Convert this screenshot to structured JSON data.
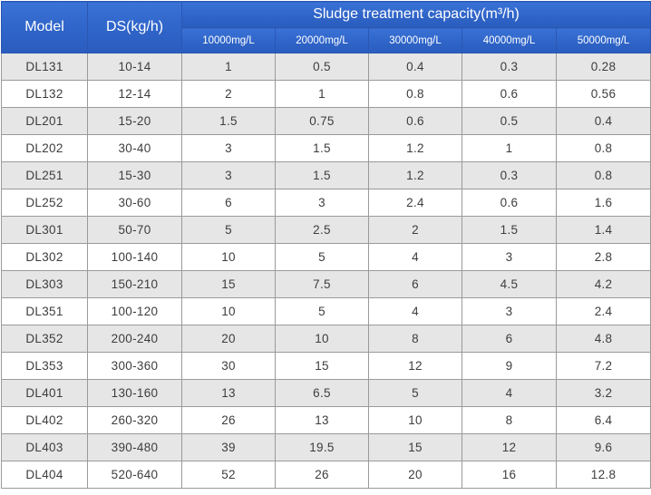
{
  "header": {
    "model": "Model",
    "ds": "DS(kg/h)",
    "capacity": "Sludge treatment capacity(m³/h)",
    "concentrations": [
      "10000mg/L",
      "20000mg/L",
      "30000mg/L",
      "40000mg/L",
      "50000mg/L"
    ]
  },
  "rows": [
    [
      "DL131",
      "10-14",
      "1",
      "0.5",
      "0.4",
      "0.3",
      "0.28"
    ],
    [
      "DL132",
      "12-14",
      "2",
      "1",
      "0.8",
      "0.6",
      "0.56"
    ],
    [
      "DL201",
      "15-20",
      "1.5",
      "0.75",
      "0.6",
      "0.5",
      "0.4"
    ],
    [
      "DL202",
      "30-40",
      "3",
      "1.5",
      "1.2",
      "1",
      "0.8"
    ],
    [
      "DL251",
      "15-30",
      "3",
      "1.5",
      "1.2",
      "0.3",
      "0.8"
    ],
    [
      "DL252",
      "30-60",
      "6",
      "3",
      "2.4",
      "0.6",
      "1.6"
    ],
    [
      "DL301",
      "50-70",
      "5",
      "2.5",
      "2",
      "1.5",
      "1.4"
    ],
    [
      "DL302",
      "100-140",
      "10",
      "5",
      "4",
      "3",
      "2.8"
    ],
    [
      "DL303",
      "150-210",
      "15",
      "7.5",
      "6",
      "4.5",
      "4.2"
    ],
    [
      "DL351",
      "100-120",
      "10",
      "5",
      "4",
      "3",
      "2.4"
    ],
    [
      "DL352",
      "200-240",
      "20",
      "10",
      "8",
      "6",
      "4.8"
    ],
    [
      "DL353",
      "300-360",
      "30",
      "15",
      "12",
      "9",
      "7.2"
    ],
    [
      "DL401",
      "130-160",
      "13",
      "6.5",
      "5",
      "4",
      "3.2"
    ],
    [
      "DL402",
      "260-320",
      "26",
      "13",
      "10",
      "8",
      "6.4"
    ],
    [
      "DL403",
      "390-480",
      "39",
      "19.5",
      "15",
      "12",
      "9.6"
    ],
    [
      "DL404",
      "520-640",
      "52",
      "26",
      "20",
      "16",
      "12.8"
    ]
  ]
}
